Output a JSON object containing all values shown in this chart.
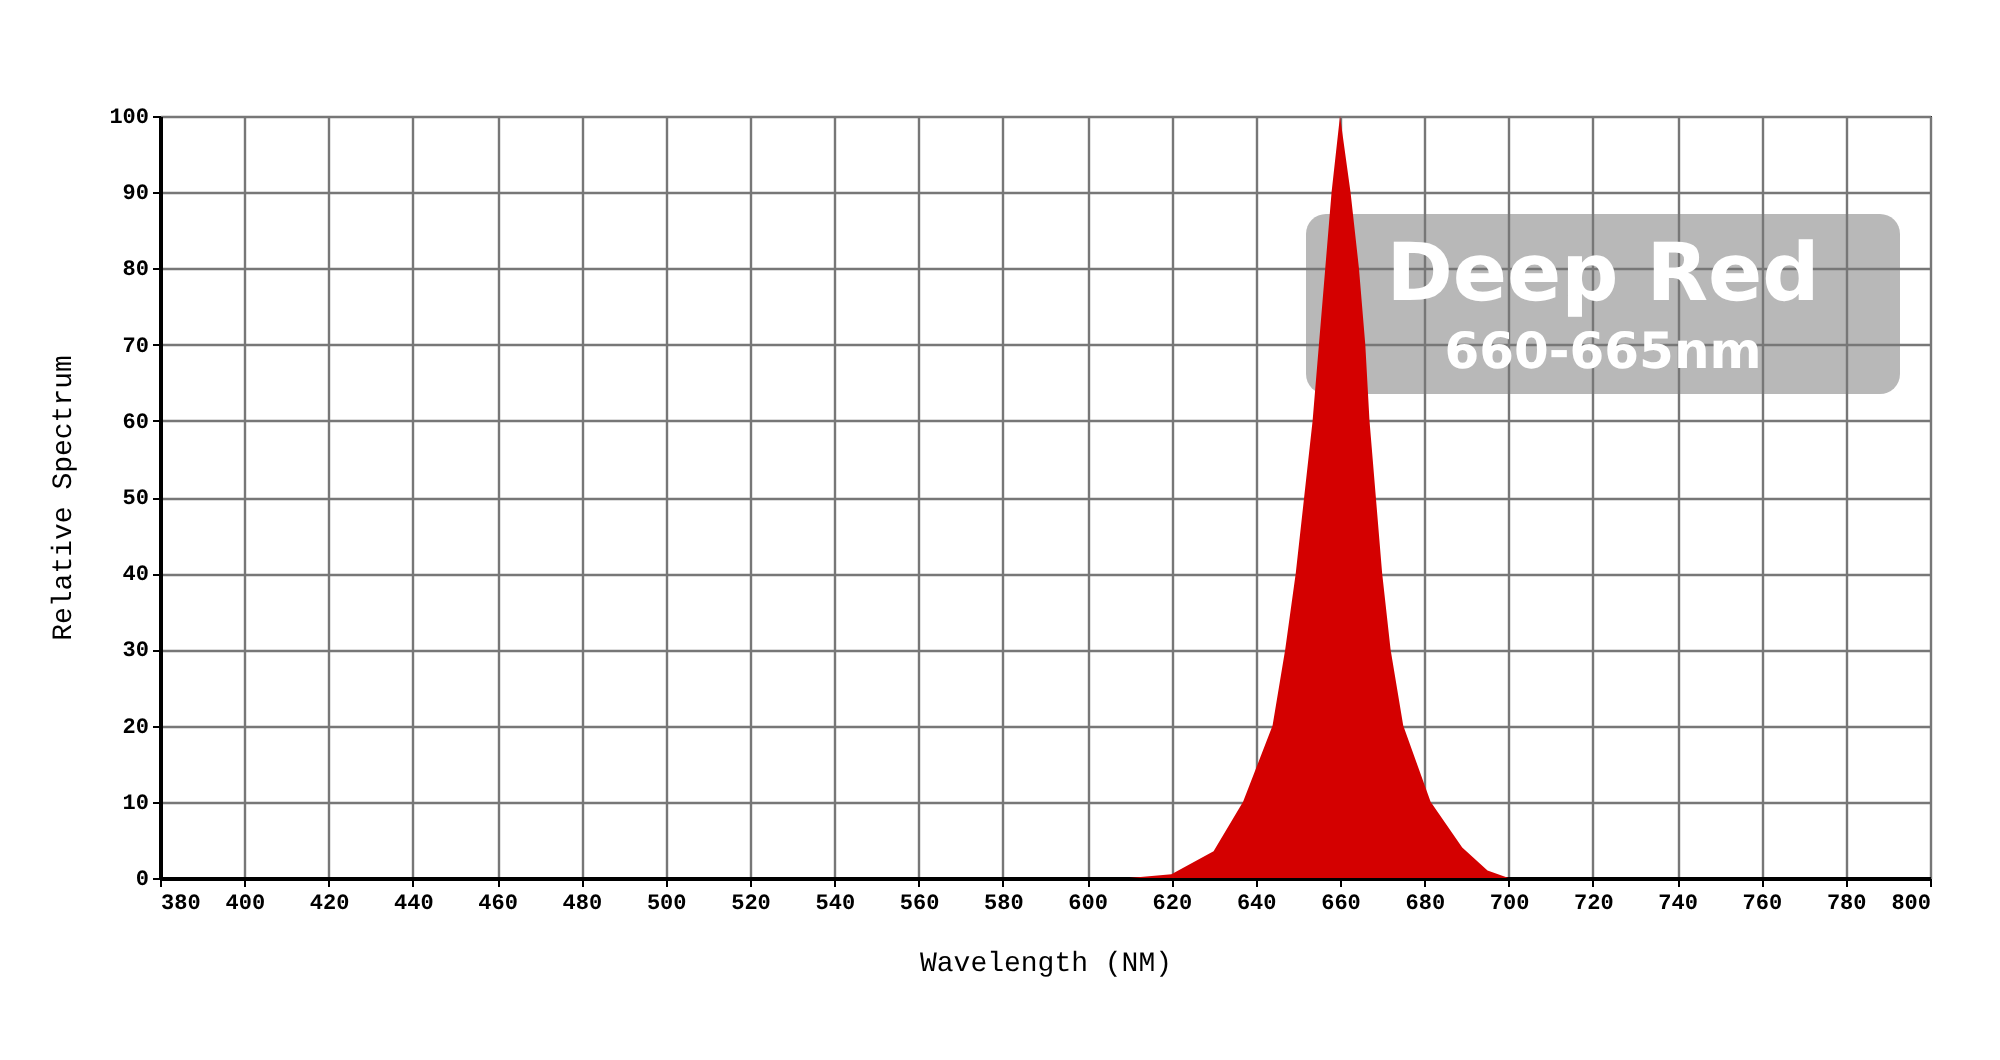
{
  "chart_data": {
    "type": "area",
    "xlabel": "Wavelength (NM)",
    "ylabel": "Relative Spectrum",
    "x": [
      380,
      610,
      620,
      630,
      637,
      644,
      647,
      649.5,
      651.5,
      653.5,
      655,
      656.5,
      658,
      660,
      662.5,
      664.5,
      666,
      667,
      668.5,
      670,
      672,
      675,
      681.5,
      689,
      695,
      700,
      800
    ],
    "series": [
      {
        "color": "#d40000",
        "values": [
          0,
          0,
          0.5,
          3.5,
          10,
          20,
          30,
          40,
          50,
          60,
          70,
          80,
          90,
          100,
          90,
          80,
          70,
          60,
          50,
          40,
          30,
          20,
          10,
          4,
          1,
          0,
          0
        ]
      }
    ],
    "xlim": [
      380,
      800
    ],
    "xticks": [
      380,
      400,
      420,
      440,
      460,
      480,
      500,
      520,
      540,
      560,
      580,
      600,
      620,
      640,
      660,
      680,
      700,
      720,
      740,
      760,
      780,
      800
    ],
    "ylim": [
      0,
      100
    ],
    "yticks": [
      0,
      10,
      20,
      30,
      40,
      50,
      60,
      70,
      80,
      90,
      100
    ],
    "grid": true,
    "annotations": [
      "Deep Red",
      "660-665nm"
    ]
  }
}
